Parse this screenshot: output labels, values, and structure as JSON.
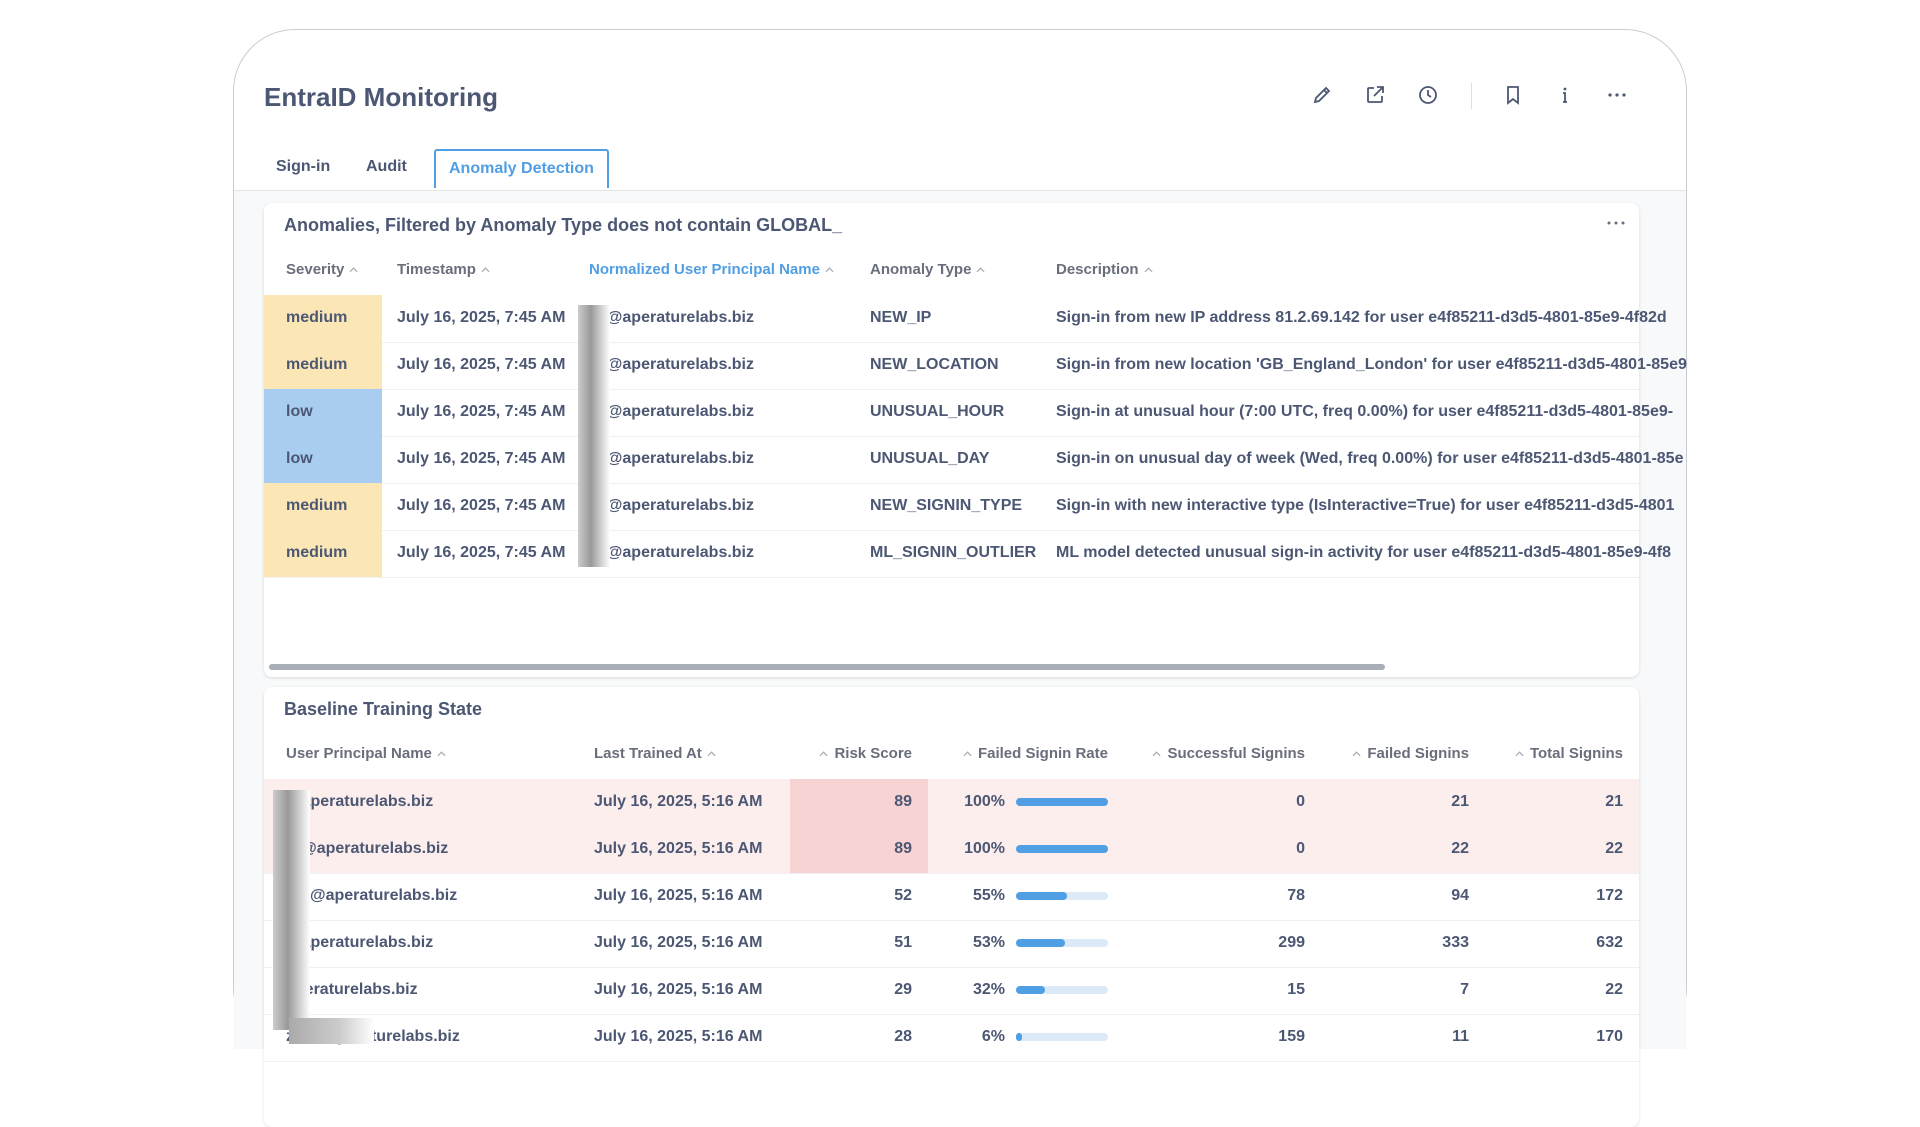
{
  "header": {
    "title": "EntraID Monitoring"
  },
  "tabs": [
    "Sign-in",
    "Audit",
    "Anomaly Detection"
  ],
  "active_tab": 2,
  "anomalies": {
    "title": "Anomalies, Filtered by Anomaly Type does not contain GLOBAL_",
    "columns": [
      "Severity",
      "Timestamp",
      "Normalized User Principal Name",
      "Anomaly Type",
      "Description"
    ],
    "sorted_column": 2,
    "severity_colors": {
      "medium": "#fbe7b6",
      "low": "#a9cdf0"
    },
    "rows": [
      [
        "medium",
        "July 16, 2025, 7:45 AM",
        "ya@aperaturelabs.biz",
        "NEW_IP",
        "Sign-in from new IP address 81.2.69.142 for user e4f85211-d3d5-4801-85e9-4f82d"
      ],
      [
        "medium",
        "July 16, 2025, 7:45 AM",
        "ya@aperaturelabs.biz",
        "NEW_LOCATION",
        "Sign-in from new location 'GB_England_London' for user e4f85211-d3d5-4801-85e9"
      ],
      [
        "low",
        "July 16, 2025, 7:45 AM",
        "ya@aperaturelabs.biz",
        "UNUSUAL_HOUR",
        "Sign-in at unusual hour (7:00 UTC, freq 0.00%) for user e4f85211-d3d5-4801-85e9-"
      ],
      [
        "low",
        "July 16, 2025, 7:45 AM",
        "ya@aperaturelabs.biz",
        "UNUSUAL_DAY",
        "Sign-in on unusual day of week (Wed, freq 0.00%) for user e4f85211-d3d5-4801-85e"
      ],
      [
        "medium",
        "July 16, 2025, 7:45 AM",
        "ya@aperaturelabs.biz",
        "NEW_SIGNIN_TYPE",
        "Sign-in with new interactive type (IsInteractive=True) for user e4f85211-d3d5-4801"
      ],
      [
        "medium",
        "July 16, 2025, 7:45 AM",
        "ya@aperaturelabs.biz",
        "ML_SIGNIN_OUTLIER",
        "ML model detected unusual sign-in activity for user e4f85211-d3d5-4801-85e9-4f8"
      ]
    ]
  },
  "baseline": {
    "title": "Baseline Training State",
    "columns": [
      "User Principal Name",
      "Last Trained At",
      "Risk Score",
      "Failed Signin Rate",
      "Successful Signins",
      "Failed Signins",
      "Total Signins"
    ],
    "rows": [
      {
        "upn": "@aperaturelabs.biz",
        "trained": "July 16, 2025, 5:16 AM",
        "risk": 89,
        "rate": {
          "value": 100,
          "label": "100%"
        },
        "success": 0,
        "failed": 21,
        "total": 21,
        "row_color": "#fdeeee",
        "risk_color": "#f8d3d3"
      },
      {
        "upn": "th@aperaturelabs.biz",
        "trained": "July 16, 2025, 5:16 AM",
        "risk": 89,
        "rate": {
          "value": 100,
          "label": "100%"
        },
        "success": 0,
        "failed": 22,
        "total": 22,
        "row_color": "#fdeeee",
        "risk_color": "#f8d3d3"
      },
      {
        "upn": "ing@aperaturelabs.biz",
        "trained": "July 16, 2025, 5:16 AM",
        "risk": 52,
        "rate": {
          "value": 55,
          "label": "55%"
        },
        "success": 78,
        "failed": 94,
        "total": 172
      },
      {
        "upn": "@aperaturelabs.biz",
        "trained": "July 16, 2025, 5:16 AM",
        "risk": 51,
        "rate": {
          "value": 53,
          "label": "53%"
        },
        "success": 299,
        "failed": 333,
        "total": 632
      },
      {
        "upn": "aperaturelabs.biz",
        "trained": "July 16, 2025, 5:16 AM",
        "risk": 29,
        "rate": {
          "value": 32,
          "label": "32%"
        },
        "success": 15,
        "failed": 7,
        "total": 22
      },
      {
        "upn": "zko@aperaturelabs.biz",
        "trained": "July 16, 2025, 5:16 AM",
        "risk": 28,
        "rate": {
          "value": 6,
          "label": "6%"
        },
        "success": 159,
        "failed": 11,
        "total": 170
      }
    ]
  }
}
